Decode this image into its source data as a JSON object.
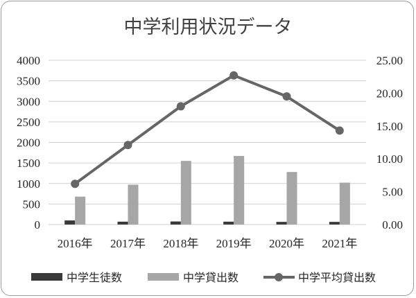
{
  "chart_data": {
    "type": "bar",
    "title": "中学利用状況データ",
    "categories": [
      "2016年",
      "2017年",
      "2018年",
      "2019年",
      "2020年",
      "2021年"
    ],
    "series": [
      {
        "name": "中学生徒数",
        "type": "bar",
        "axis": "left",
        "color": "#3a3a3a",
        "values": [
          100,
          70,
          75,
          70,
          65,
          65
        ]
      },
      {
        "name": "中学貸出数",
        "type": "bar",
        "axis": "left",
        "color": "#a6a6a6",
        "values": [
          680,
          970,
          1550,
          1670,
          1280,
          1020
        ]
      },
      {
        "name": "中学平均貸出数",
        "type": "line",
        "axis": "right",
        "color": "#666666",
        "values": [
          6.2,
          12.1,
          18.0,
          22.7,
          19.5,
          14.3
        ]
      }
    ],
    "y_left": {
      "min": 0,
      "max": 4000,
      "step": 500,
      "ticks": [
        "0",
        "500",
        "1000",
        "1500",
        "2000",
        "2500",
        "3000",
        "3500",
        "4000"
      ]
    },
    "y_right": {
      "min": 0,
      "max": 25,
      "step": 5,
      "ticks": [
        "0.00",
        "5.00",
        "10.00",
        "15.00",
        "20.00",
        "25.00"
      ]
    },
    "grid": true,
    "legend": "bottom"
  }
}
